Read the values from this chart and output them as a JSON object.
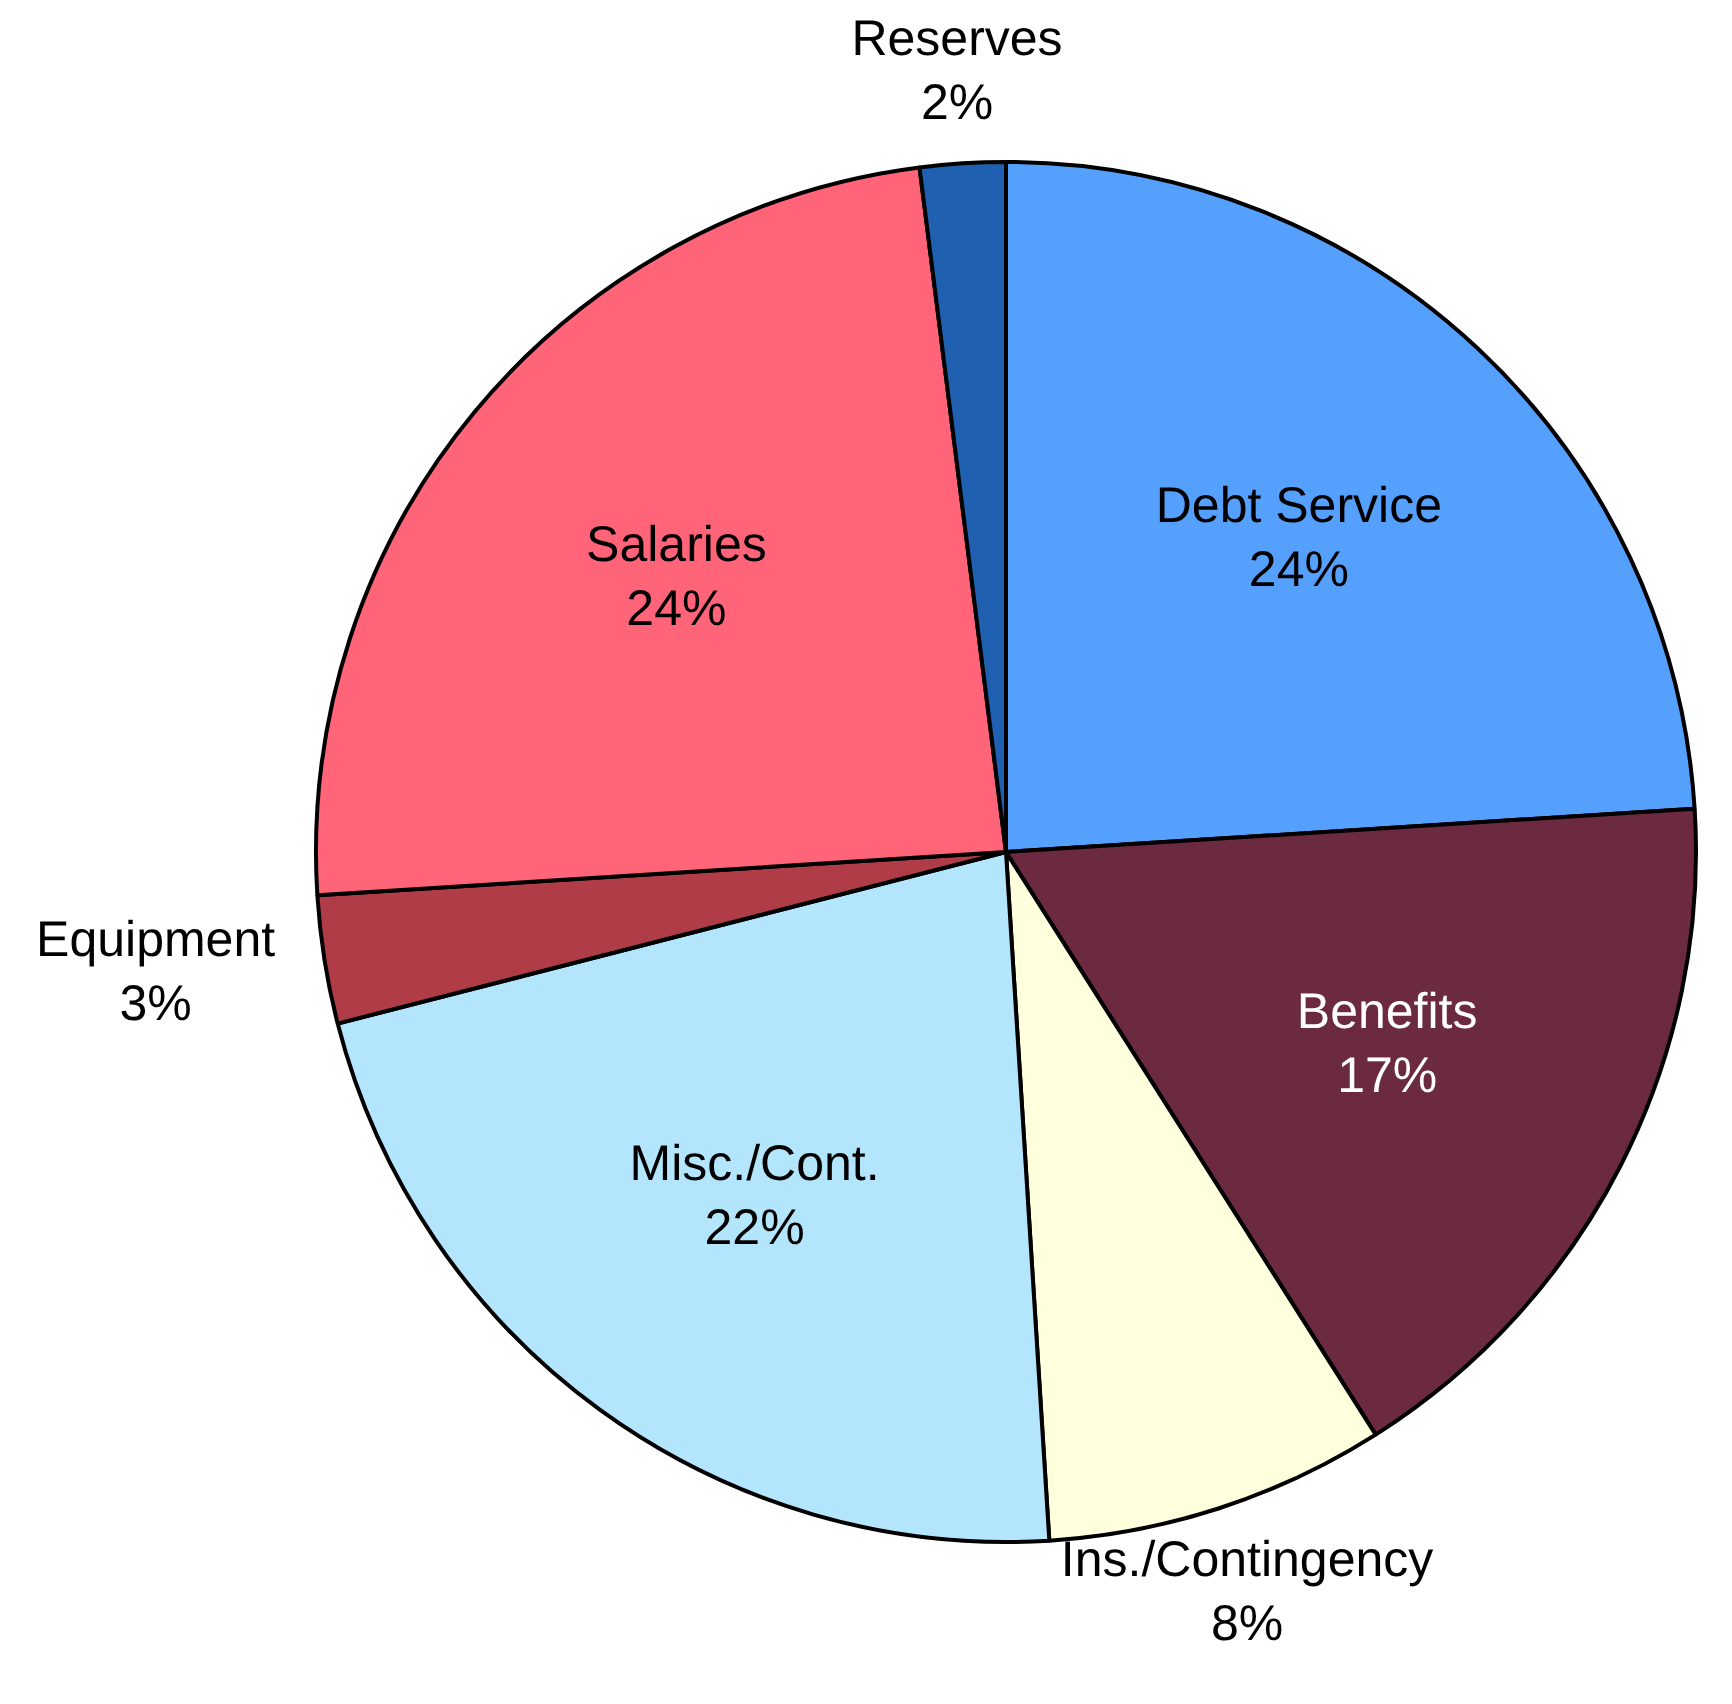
{
  "chart_data": {
    "type": "pie",
    "categories": [
      "Debt Service",
      "Benefits",
      "Ins./Contingency",
      "Misc./Cont.",
      "Equipment",
      "Salaries",
      "Reserves"
    ],
    "values": [
      24,
      17,
      8,
      22,
      3,
      24,
      2
    ],
    "value_labels": [
      "24%",
      "17%",
      "8%",
      "22%",
      "3%",
      "24%",
      "2%"
    ],
    "colors": [
      "#559ffd",
      "#6b2a40",
      "#ffffdd",
      "#b3e5fc",
      "#b03c48",
      "#ff6478",
      "#2060b0"
    ],
    "legend": false
  }
}
